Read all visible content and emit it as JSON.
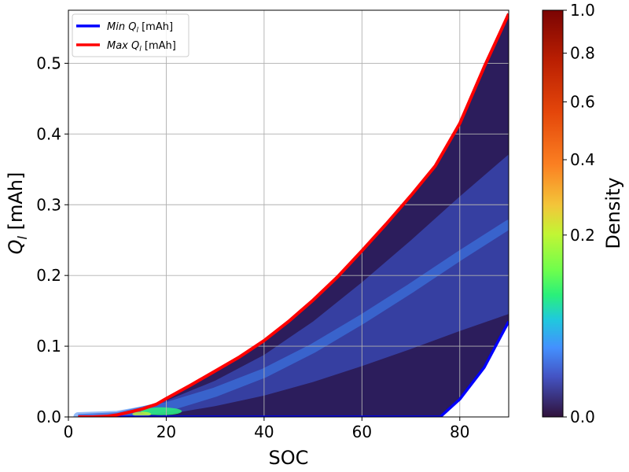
{
  "chart_data": {
    "type": "heatmap",
    "xlabel": "SOC",
    "ylabel_main": "Q",
    "ylabel_sub": "l",
    "ylabel_rest": " [mAh]",
    "xlim": [
      0,
      90
    ],
    "ylim": [
      0,
      0.575
    ],
    "x_ticks": [
      0,
      20,
      40,
      60,
      80
    ],
    "x_tick_labels": [
      "0",
      "20",
      "40",
      "60",
      "80"
    ],
    "y_ticks": [
      0.0,
      0.1,
      0.2,
      0.3,
      0.4,
      0.5
    ],
    "y_tick_labels": [
      "0.0",
      "0.1",
      "0.2",
      "0.3",
      "0.4",
      "0.5"
    ],
    "grid": true,
    "legend_position": "top-left",
    "legend": [
      {
        "main": "Min Q",
        "sub": "l",
        "rest": " [mAh]",
        "color": "#0000ff"
      },
      {
        "main": "Max Q",
        "sub": "l",
        "rest": " [mAh]",
        "color": "#ff0000"
      }
    ],
    "colorbar": {
      "label": "Density",
      "colormap": "turbo",
      "scale": "power",
      "ticks": [
        0.0,
        0.2,
        0.4,
        0.6,
        0.8,
        1.0
      ],
      "tick_labels": [
        "0.0",
        "0.2",
        "0.4",
        "0.6",
        "0.8",
        "1.0"
      ]
    },
    "series": [
      {
        "name": "Max Q_l [mAh]",
        "color": "#ff0000",
        "x": [
          2,
          5,
          8,
          10,
          12,
          15,
          18,
          20,
          25,
          30,
          35,
          40,
          45,
          50,
          55,
          60,
          65,
          70,
          75,
          80,
          85,
          90
        ],
        "y": [
          0.0,
          0.0,
          0.001,
          0.003,
          0.006,
          0.011,
          0.018,
          0.026,
          0.045,
          0.065,
          0.085,
          0.108,
          0.135,
          0.165,
          0.198,
          0.235,
          0.273,
          0.313,
          0.355,
          0.415,
          0.495,
          0.57
        ]
      },
      {
        "name": "Min Q_l [mAh]",
        "color": "#0000ff",
        "x": [
          2,
          10,
          20,
          30,
          40,
          50,
          60,
          70,
          76,
          80,
          85,
          90
        ],
        "y": [
          0.0,
          0.0,
          0.0,
          0.0,
          0.0,
          0.0,
          0.0,
          0.0,
          0.0,
          0.025,
          0.07,
          0.135
        ]
      },
      {
        "name": "density-ridge",
        "color": "#3c82f0",
        "x": [
          2,
          10,
          20,
          30,
          40,
          50,
          60,
          70,
          80,
          90
        ],
        "y": [
          0.0,
          0.002,
          0.014,
          0.035,
          0.062,
          0.097,
          0.138,
          0.182,
          0.228,
          0.272
        ]
      }
    ]
  }
}
